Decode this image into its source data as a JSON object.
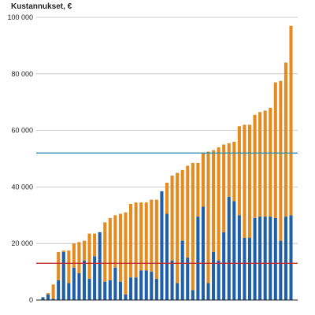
{
  "chart_data": {
    "type": "bar",
    "stacked": true,
    "title": "",
    "xlabel": "",
    "ylabel": "Kustannukset, €",
    "ylim": [
      0,
      100000
    ],
    "y_ticks": [
      0,
      20000,
      40000,
      60000,
      80000,
      100000
    ],
    "y_tick_labels": [
      "0",
      "20 000",
      "40 000",
      "60 000",
      "80 000",
      "100 000"
    ],
    "grid": true,
    "legend": "none",
    "series": [
      {
        "color": "#1f5fa8",
        "values": [
          1000,
          2000,
          500,
          7000,
          17000,
          6000,
          11500,
          9500,
          14000,
          7500,
          15500,
          24000,
          6500,
          7000,
          11500,
          6500,
          2000,
          8000,
          8000,
          10500,
          10500,
          10000,
          7500,
          38500,
          30500,
          14000,
          6000,
          21000,
          15000,
          3500,
          29500,
          33000,
          6000,
          17000,
          14000,
          24000,
          36500,
          35000,
          30000,
          22000,
          22000,
          29000,
          29500,
          29500,
          29500,
          29000,
          21000,
          29500,
          30000
        ]
      },
      {
        "color": "#e58a1e",
        "values": [
          0,
          500,
          5000,
          10000,
          500,
          11500,
          8500,
          11000,
          7000,
          16000,
          8000,
          0,
          21000,
          22000,
          18500,
          24000,
          29000,
          26000,
          26500,
          24000,
          24000,
          25500,
          28000,
          0,
          11000,
          30000,
          39000,
          25000,
          32500,
          45000,
          19000,
          19000,
          46500,
          36000,
          40000,
          31000,
          19000,
          21000,
          31500,
          40000,
          40000,
          36500,
          37000,
          37500,
          38500,
          48000,
          56500,
          54500,
          67000
        ]
      }
    ],
    "reference_lines": [
      {
        "value": 52000,
        "color": "#2a8fb5"
      },
      {
        "value": 13000,
        "color": "#c0282d"
      }
    ]
  }
}
